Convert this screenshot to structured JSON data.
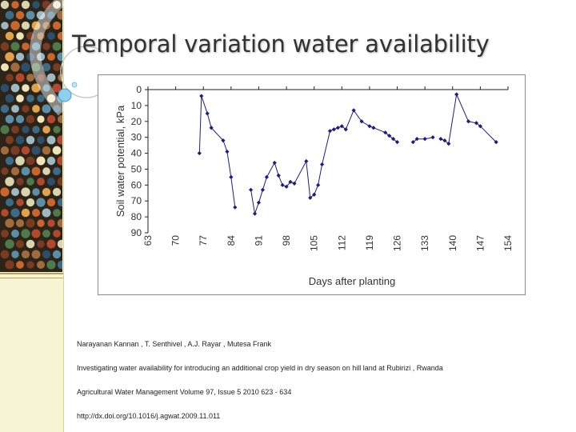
{
  "slide": {
    "title": "Temporal variation water availability"
  },
  "colors": {
    "accent_bg": "#f6f4d2",
    "rule": "#b9a25c",
    "series": "#1c1c82",
    "axis": "#222222"
  },
  "chart_data": {
    "type": "line",
    "title": "",
    "xlabel": "Days after planting",
    "ylabel": "Soil water potential, kPa",
    "xlim": [
      63,
      154
    ],
    "ylim": [
      0,
      90
    ],
    "y_inverted": true,
    "x_ticks": [
      63,
      70,
      77,
      84,
      91,
      98,
      105,
      112,
      119,
      126,
      133,
      140,
      147,
      154
    ],
    "y_ticks": [
      0,
      10,
      20,
      30,
      40,
      50,
      60,
      70,
      80,
      90
    ],
    "grid": false,
    "legend": "none",
    "series": [
      {
        "name": "Soil water potential",
        "segments": [
          [
            [
              76,
              40
            ],
            [
              76.5,
              4
            ],
            [
              78,
              15
            ],
            [
              79,
              24
            ],
            [
              82,
              32
            ],
            [
              83,
              39
            ],
            [
              84,
              55
            ],
            [
              85,
              74
            ]
          ],
          [
            [
              89,
              63
            ],
            [
              90,
              78
            ],
            [
              91,
              71
            ],
            [
              92,
              63
            ],
            [
              93,
              55
            ],
            [
              95,
              46
            ],
            [
              96,
              54
            ],
            [
              97,
              60
            ],
            [
              98,
              61
            ],
            [
              99,
              58
            ],
            [
              100,
              59
            ],
            [
              103,
              45
            ],
            [
              104,
              68
            ],
            [
              105,
              66
            ],
            [
              106,
              60
            ],
            [
              107,
              47
            ],
            [
              109,
              26
            ],
            [
              110,
              25
            ],
            [
              111,
              24
            ],
            [
              112,
              23
            ],
            [
              113,
              25
            ],
            [
              115,
              13
            ],
            [
              117,
              20
            ],
            [
              119,
              23
            ],
            [
              120,
              24
            ],
            [
              123,
              27
            ],
            [
              124,
              29
            ],
            [
              125,
              31
            ],
            [
              126,
              33
            ]
          ],
          [
            [
              130,
              33
            ],
            [
              131,
              31
            ],
            [
              133,
              31
            ],
            [
              135,
              30
            ]
          ],
          [
            [
              137,
              31
            ],
            [
              138,
              32
            ],
            [
              139,
              34
            ],
            [
              141,
              3
            ],
            [
              144,
              20
            ],
            [
              146,
              21
            ],
            [
              147,
              23
            ],
            [
              151,
              33
            ]
          ]
        ]
      }
    ]
  },
  "references": {
    "authors": "Narayanan  Kannan , T.  Senthivel , A.J.   Rayar , Mutesa  Frank",
    "title": "Investigating water availability for introducing an additional crop yield in dry season on hill land at Rubirizi , Rwanda",
    "journal": "Agricultural Water Management Volume 97, Issue 5 2010 623 - 634",
    "doi": "http://dx.doi.org/10.1016/j.agwat.2009.11.011"
  }
}
